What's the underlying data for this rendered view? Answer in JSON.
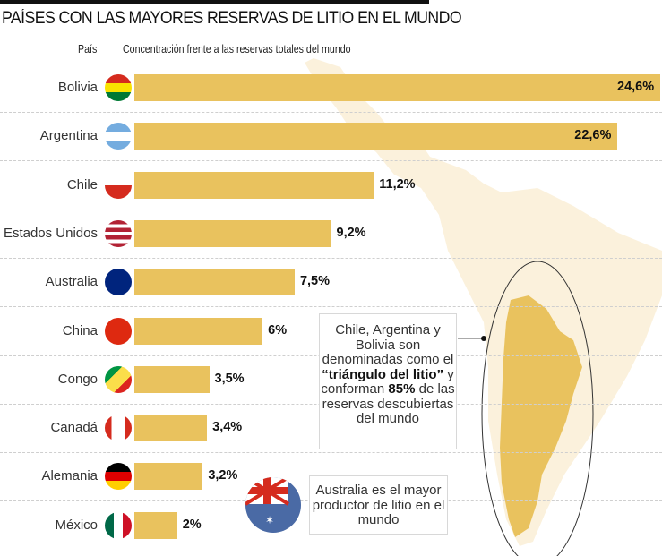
{
  "chart_data": {
    "type": "bar",
    "orientation": "horizontal",
    "title": "PAÍSES CON LAS MAYORES RESERVAS DE LITIO EN EL MUNDO",
    "category_header": "País",
    "value_header": "Concentración frente a las reservas totales del mundo",
    "categories": [
      "Bolivia",
      "Argentina",
      "Chile",
      "Estados Unidos",
      "Australia",
      "China",
      "Congo",
      "Canadá",
      "Alemania",
      "México"
    ],
    "values": [
      24.6,
      22.6,
      11.2,
      9.2,
      7.5,
      6,
      3.5,
      3.4,
      3.2,
      2
    ],
    "value_labels": [
      "24,6%",
      "22,6%",
      "11,2%",
      "9,2%",
      "7,5%",
      "6%",
      "3,5%",
      "3,4%",
      "3,2%",
      "2%"
    ],
    "xlim": [
      0,
      24.6
    ],
    "bar_color": "#e9c25e",
    "grid": false
  },
  "flags": [
    {
      "country": "Bolivia",
      "stripes": [
        "#d52b1e",
        "#f9e300",
        "#007934"
      ],
      "dir": "h"
    },
    {
      "country": "Argentina",
      "stripes": [
        "#74acdf",
        "#ffffff",
        "#74acdf"
      ],
      "dir": "h"
    },
    {
      "country": "Chile",
      "stripes": [
        "#ffffff",
        "#d52b1e"
      ],
      "dir": "h"
    },
    {
      "country": "Estados Unidos",
      "stripes": [
        "#b22234",
        "#ffffff",
        "#b22234",
        "#ffffff",
        "#b22234",
        "#ffffff",
        "#b22234"
      ],
      "dir": "h"
    },
    {
      "country": "Australia",
      "stripes": [
        "#00247d",
        "#00247d"
      ],
      "dir": "h"
    },
    {
      "country": "China",
      "stripes": [
        "#de2910",
        "#de2910"
      ],
      "dir": "h"
    },
    {
      "country": "Congo",
      "stripes": [
        "#009543",
        "#fbde4a",
        "#dc241f"
      ],
      "dir": "d"
    },
    {
      "country": "Canadá",
      "stripes": [
        "#d52b1e",
        "#ffffff",
        "#ffffff",
        "#d52b1e"
      ],
      "dir": "v"
    },
    {
      "country": "Alemania",
      "stripes": [
        "#000000",
        "#dd0000",
        "#ffce00"
      ],
      "dir": "h"
    },
    {
      "country": "México",
      "stripes": [
        "#006847",
        "#ffffff",
        "#ce1126"
      ],
      "dir": "v"
    }
  ],
  "annotations": {
    "triangle_note": {
      "line1": "Chile, Argentina y Bolivia son denominadas como el ",
      "bold1": "“triángulo del litio”",
      "line2": " y conforman ",
      "bold2": "85%",
      "line3": " de las reservas descubiertas del mundo"
    },
    "australia_note": "Australia es el mayor productor de litio en el mundo"
  }
}
